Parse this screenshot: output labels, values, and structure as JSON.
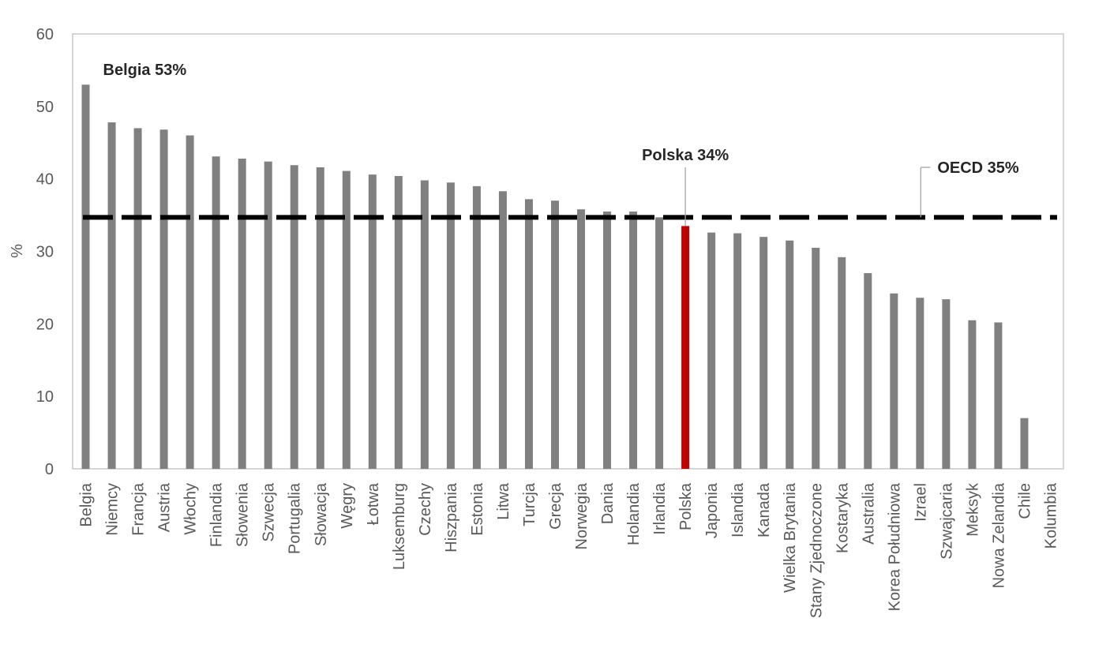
{
  "chart_data": {
    "type": "bar",
    "title": "",
    "xlabel": "",
    "ylabel": "%",
    "ylim": [
      0,
      60
    ],
    "yticks": [
      "0",
      "10",
      "20",
      "30",
      "40",
      "50",
      "60"
    ],
    "grid": false,
    "categories": [
      "Belgia",
      "Niemcy",
      "Francja",
      "Austria",
      "Włochy",
      "Finlandia",
      "Słowenia",
      "Szwecja",
      "Portugalia",
      "Słowacja",
      "Węgry",
      "Łotwa",
      "Luksemburg",
      "Czechy",
      "Hiszpania",
      "Estonia",
      "Litwa",
      "Turcja",
      "Grecja",
      "Norwegia",
      "Dania",
      "Holandia",
      "Irlandia",
      "Polska",
      "Japonia",
      "Islandia",
      "Kanada",
      "Wielka Brytania",
      "Stany Zjednoczone",
      "Kostaryka",
      "Australia",
      "Korea Południowa",
      "Izrael",
      "Szwajcaria",
      "Meksyk",
      "Nowa Zelandia",
      "Chile",
      "Kolumbia"
    ],
    "series": [
      {
        "values": [
          53.0,
          47.8,
          47.0,
          46.8,
          46.0,
          43.1,
          42.8,
          42.4,
          41.9,
          41.6,
          41.1,
          40.6,
          40.4,
          39.8,
          39.5,
          39.0,
          38.3,
          37.2,
          37.0,
          35.8,
          35.5,
          35.5,
          34.7,
          33.5,
          32.6,
          32.5,
          32.0,
          31.5,
          30.5,
          29.2,
          27.0,
          24.2,
          23.6,
          23.4,
          20.5,
          20.2,
          7.0,
          0
        ]
      }
    ],
    "highlight_category": "Polska",
    "reference_line": {
      "value": 34.7,
      "label": "OECD 35%"
    },
    "annotations": [
      {
        "category": "Belgia",
        "text": "Belgia 53%"
      },
      {
        "category": "Polska",
        "text": "Polska 34%"
      }
    ],
    "colors": {
      "bar": "#808080",
      "highlight": "#C00000",
      "reference": "#000000",
      "axis": "#BFBFBF"
    }
  }
}
